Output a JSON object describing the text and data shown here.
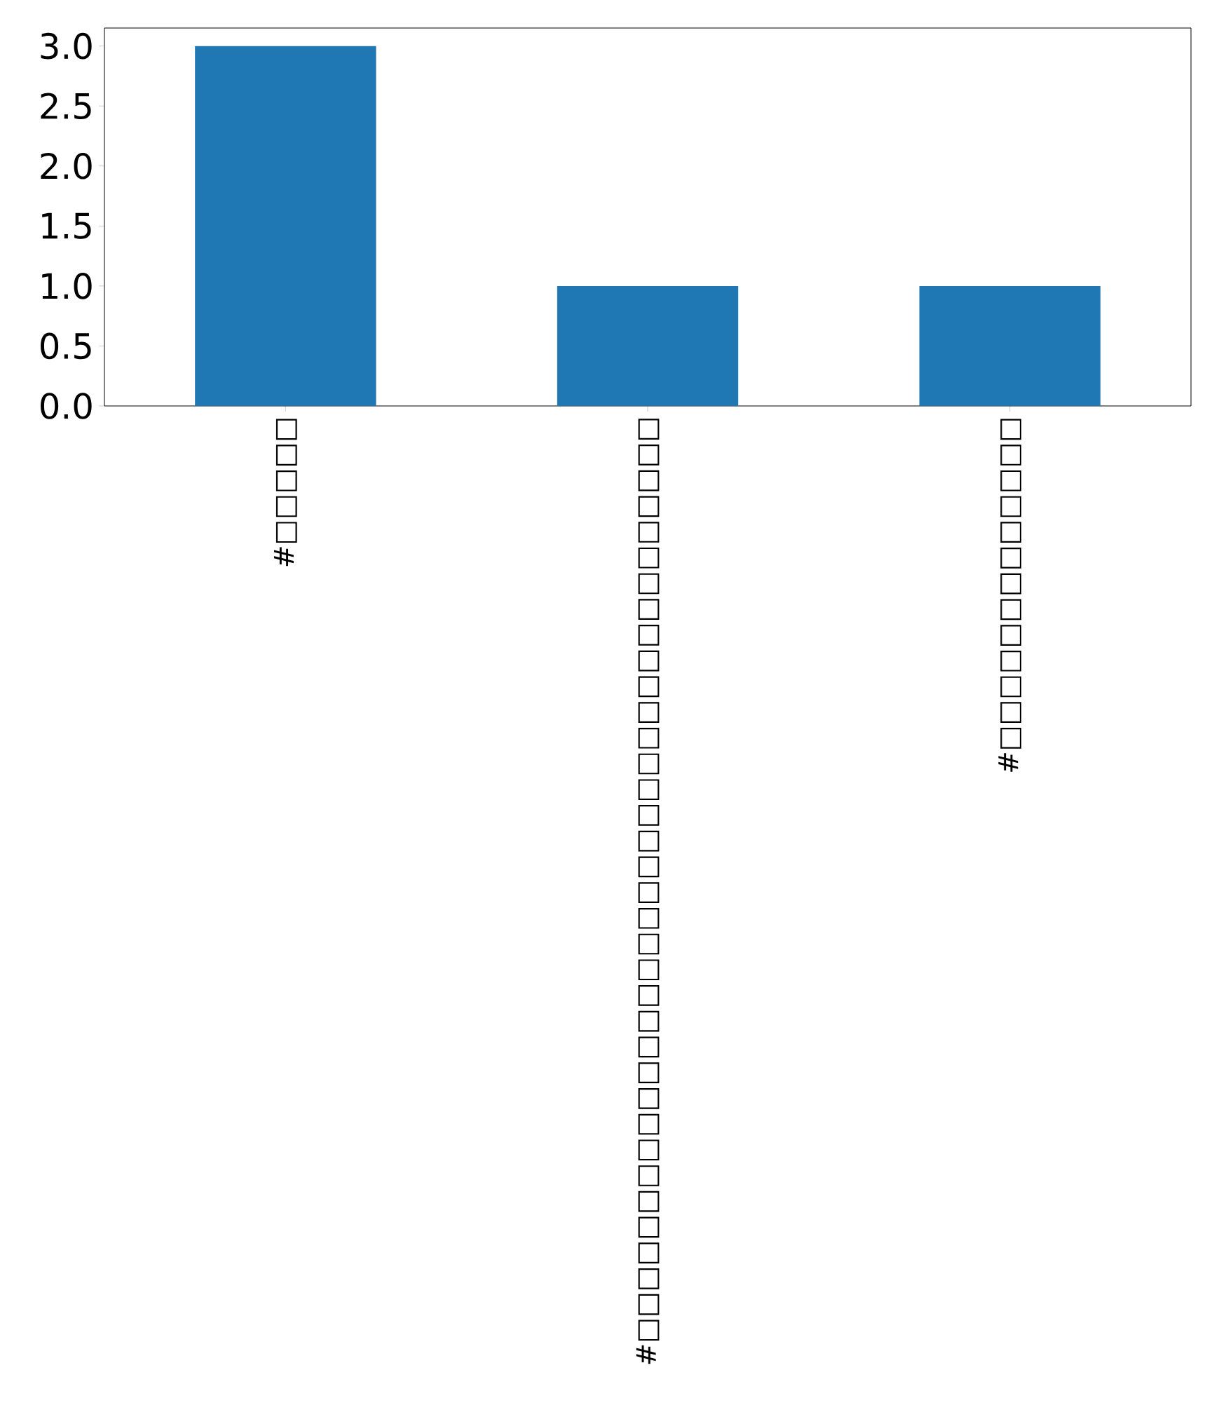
{
  "chart_data": {
    "type": "bar",
    "categories": [
      "#□□□□□",
      "#□□□□□□□□□□□□□□□□□□□□□□□□□□□□□□□□□□□□",
      "#□□□□□□□□□□□□□"
    ],
    "values": [
      3,
      1,
      1
    ],
    "color": "#1f77b4",
    "ylim": [
      0,
      3.15
    ],
    "yticks": [
      {
        "value": 0,
        "label": "0.0"
      },
      {
        "value": 0.5,
        "label": "0.5"
      },
      {
        "value": 1,
        "label": "1.0"
      },
      {
        "value": 1.5,
        "label": "1.5"
      },
      {
        "value": 2,
        "label": "2.0"
      },
      {
        "value": 2.5,
        "label": "2.5"
      },
      {
        "value": 3,
        "label": "3.0"
      }
    ],
    "grid": false
  }
}
